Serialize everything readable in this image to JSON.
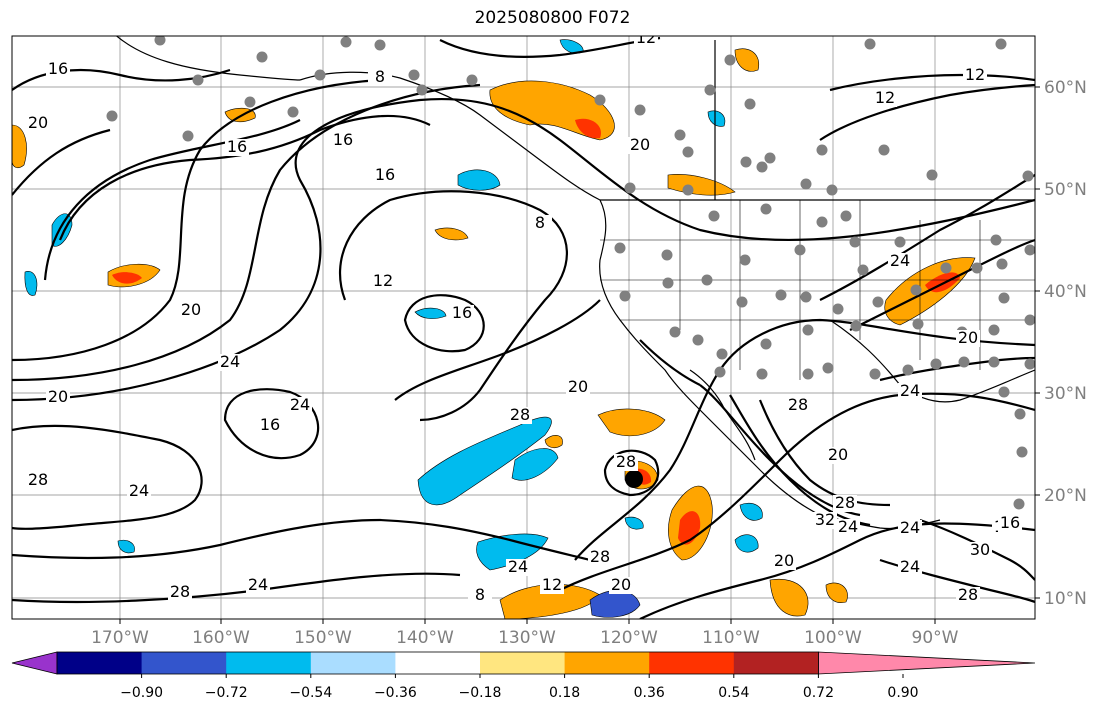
{
  "title": "2025080800 F072",
  "map": {
    "lon_labels": [
      "170°W",
      "160°W",
      "150°W",
      "140°W",
      "130°W",
      "120°W",
      "110°W",
      "100°W",
      "90°W"
    ],
    "lat_labels": [
      "60°N",
      "50°N",
      "40°N",
      "30°N",
      "20°N",
      "10°N"
    ],
    "contour_labels": [
      "12",
      "16",
      "8",
      "16",
      "20",
      "16",
      "12",
      "16",
      "20",
      "8",
      "12",
      "12",
      "20",
      "24",
      "24",
      "20",
      "16",
      "16",
      "24",
      "28",
      "24",
      "28",
      "24",
      "28",
      "12",
      "8",
      "20",
      "28",
      "28",
      "20",
      "24",
      "32",
      "28",
      "24",
      "16",
      "24",
      "28",
      "20",
      "24",
      "20",
      "24",
      "20",
      "16",
      "28",
      "30"
    ],
    "station_marker": "circle"
  },
  "colorbar": {
    "ticks": [
      "−0.90",
      "−0.72",
      "−0.54",
      "−0.36",
      "−0.18",
      "0.18",
      "0.36",
      "0.54",
      "0.72",
      "0.90"
    ],
    "colors": [
      "#9933cc",
      "#000088",
      "#3355cc",
      "#00bbee",
      "#aaddff",
      "#ffffff",
      "#ffe680",
      "#ffa500",
      "#ff3300",
      "#b22222",
      "#ff88aa"
    ]
  }
}
